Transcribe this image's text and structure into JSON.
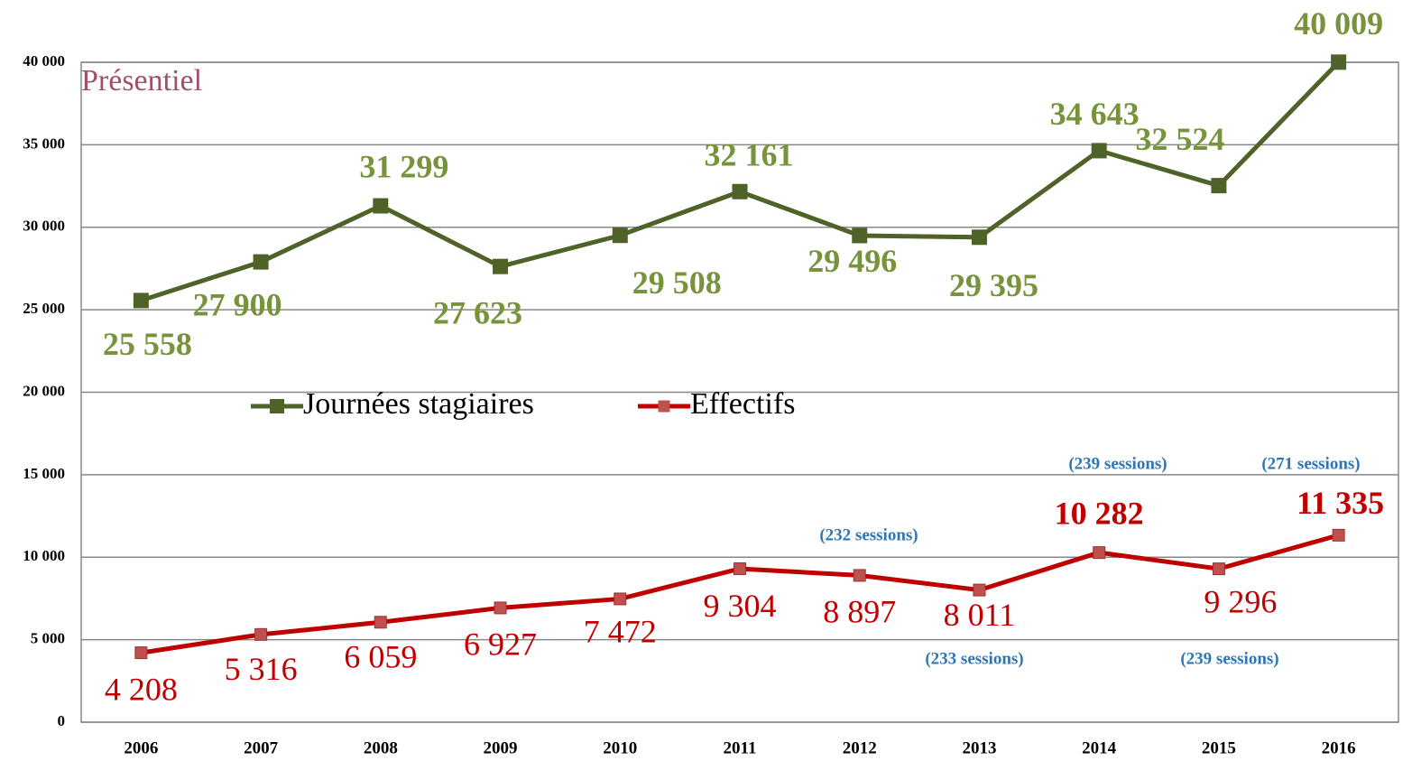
{
  "chart_data": {
    "type": "line",
    "subtitle": "Présentiel",
    "categories": [
      "2006",
      "2007",
      "2008",
      "2009",
      "2010",
      "2011",
      "2012",
      "2013",
      "2014",
      "2015",
      "2016"
    ],
    "series": [
      {
        "name": "Journées stagiaires",
        "color": "#4f6228",
        "label_color": "#77933c",
        "values": [
          25558,
          27900,
          31299,
          27623,
          29508,
          32161,
          29496,
          29395,
          34643,
          32524,
          40009
        ],
        "value_labels": [
          "25 558",
          "27 900",
          "31 299",
          "27 623",
          "29 508",
          "32 161",
          "29 496",
          "29 395",
          "34 643",
          "32 524",
          "40 009"
        ]
      },
      {
        "name": "Effectifs",
        "color": "#c00000",
        "marker_color": "#c0504d",
        "label_color": "#c00000",
        "values": [
          4208,
          5316,
          6059,
          6927,
          7472,
          9304,
          8897,
          8011,
          10282,
          9296,
          11335
        ],
        "value_labels": [
          "4 208",
          "5 316",
          "6 059",
          "6 927",
          "7 472",
          "9 304",
          "8 897",
          "8 011",
          "10 282",
          "9 296",
          "11 335"
        ]
      }
    ],
    "annotations": [
      "(232 sessions)",
      "(233 sessions)",
      "(239 sessions)",
      "(239 sessions)",
      "(271 sessions)"
    ],
    "ylim": [
      0,
      40000
    ],
    "yticks": [
      0,
      {
        "value": 5000,
        "label": "5 000"
      },
      {
        "value": 10000,
        "label": "10 000"
      },
      {
        "value": 15000,
        "label": "15 000"
      },
      {
        "value": 20000,
        "label": "20 000"
      },
      {
        "value": 25000,
        "label": "25 000"
      },
      {
        "value": 30000,
        "label": "30 000"
      },
      {
        "value": 35000,
        "label": "35 000"
      },
      {
        "value": 40000,
        "label": "40 000"
      }
    ],
    "grid": true
  }
}
